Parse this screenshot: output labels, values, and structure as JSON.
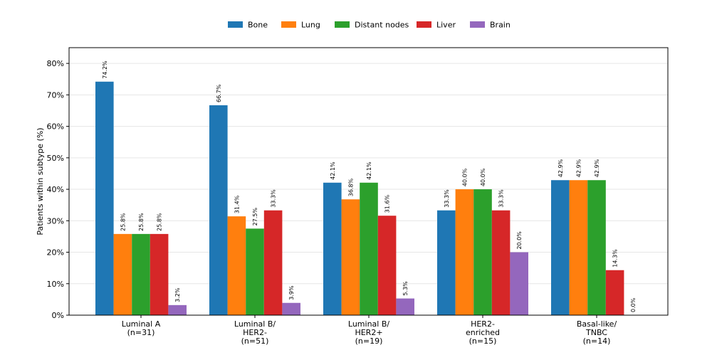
{
  "chart_data": {
    "type": "bar",
    "ylabel": "Patients within subtype (%)",
    "xlabel": "",
    "ylim": [
      0,
      85
    ],
    "yticks": [
      0,
      10,
      20,
      30,
      40,
      50,
      60,
      70,
      80
    ],
    "ytick_labels": [
      "0%",
      "10%",
      "20%",
      "30%",
      "40%",
      "50%",
      "60%",
      "70%",
      "80%"
    ],
    "grid": "horizontal",
    "legend_position": "top-center",
    "categories": [
      [
        "Luminal A",
        "(n=31)"
      ],
      [
        "Luminal B/",
        "HER2-",
        "(n=51)"
      ],
      [
        "Luminal B/",
        "HER2+",
        "(n=19)"
      ],
      [
        "HER2-",
        "enriched",
        "(n=15)"
      ],
      [
        "Basal-like/",
        "TNBC",
        "(n=14)"
      ]
    ],
    "series": [
      {
        "name": "Bone",
        "color": "#1f77b4",
        "values": [
          74.2,
          66.7,
          42.1,
          33.3,
          42.9
        ],
        "labels": [
          "74.2%",
          "66.7%",
          "42.1%",
          "33.3%",
          "42.9%"
        ]
      },
      {
        "name": "Lung",
        "color": "#ff7f0e",
        "values": [
          25.8,
          31.4,
          36.8,
          40.0,
          42.9
        ],
        "labels": [
          "25.8%",
          "31.4%",
          "36.8%",
          "40.0%",
          "42.9%"
        ]
      },
      {
        "name": "Distant nodes",
        "color": "#2ca02c",
        "values": [
          25.8,
          27.5,
          42.1,
          40.0,
          42.9
        ],
        "labels": [
          "25.8%",
          "27.5%",
          "42.1%",
          "40.0%",
          "42.9%"
        ]
      },
      {
        "name": "Liver",
        "color": "#d62728",
        "values": [
          25.8,
          33.3,
          31.6,
          33.3,
          14.3
        ],
        "labels": [
          "25.8%",
          "33.3%",
          "31.6%",
          "33.3%",
          "14.3%"
        ]
      },
      {
        "name": "Brain",
        "color": "#9467bd",
        "values": [
          3.2,
          3.9,
          5.3,
          20.0,
          0.0
        ],
        "labels": [
          "3.2%",
          "3.9%",
          "5.3%",
          "20.0%",
          "0.0%"
        ]
      }
    ]
  }
}
